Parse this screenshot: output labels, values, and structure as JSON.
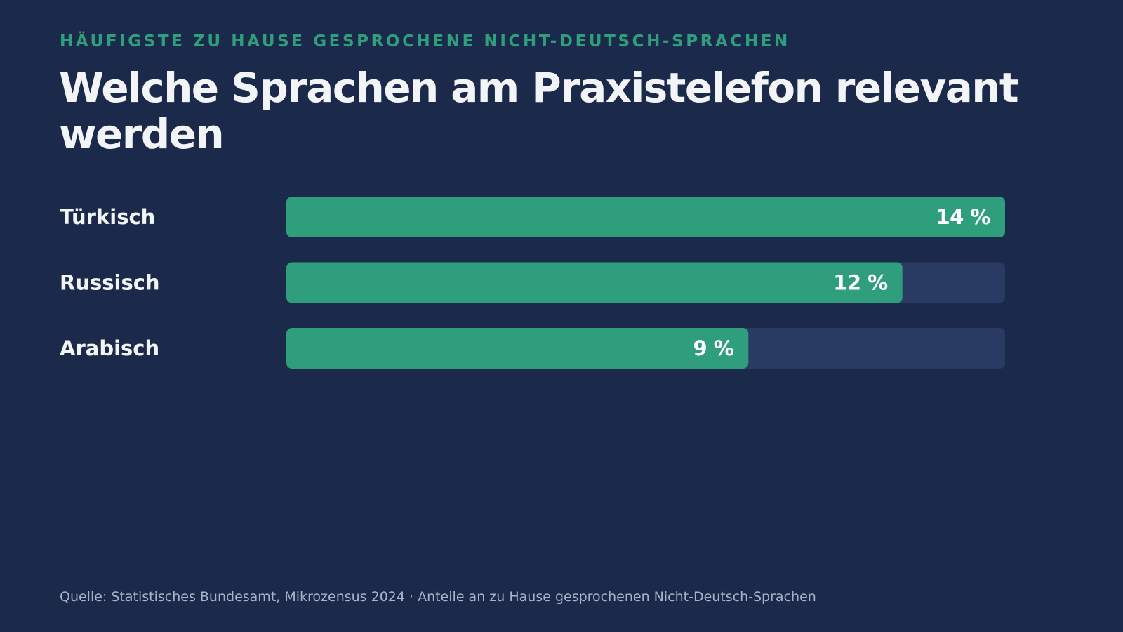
{
  "page": {
    "background": "#1b2a4a",
    "accent": "#2e9e7d",
    "track": "#293b63",
    "eyebrow_color": "#2e9e7d",
    "title_color": "#f2f4f8",
    "label_color": "#f2f4f8",
    "source_color": "#a9b2c8"
  },
  "header": {
    "eyebrow": "HÄUFIGSTE ZU HAUSE GESPROCHENE NICHT-DEUTSCH-SPRACHEN",
    "title": "Welche Sprachen am Praxistelefon relevant werden"
  },
  "footer": {
    "source": "Quelle: Statistisches Bundesamt, Mikrozensus 2024 · Anteile an zu Hause gesprochenen Nicht-Deutsch-Sprachen"
  },
  "chart_data": {
    "type": "bar",
    "orientation": "horizontal",
    "categories": [
      "Türkisch",
      "Russisch",
      "Arabisch"
    ],
    "values": [
      14,
      12,
      9
    ],
    "value_labels": [
      "14 %",
      "12 %",
      "9 %"
    ],
    "unit": "%",
    "xlim": [
      0,
      14
    ],
    "grid": false,
    "legend": "none"
  }
}
